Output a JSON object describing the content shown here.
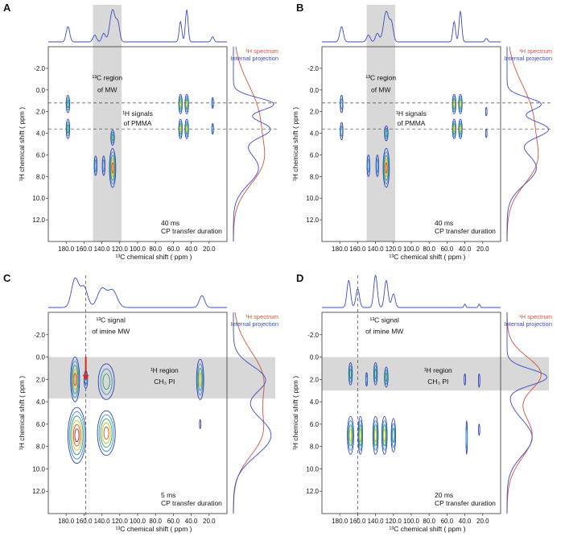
{
  "figure": {
    "legend_red": "¹H spectrum",
    "legend_blue": "Internal projection",
    "x_axis_label": "¹³C chemical shift ( ppm )",
    "y_axis_label": "¹H chemical shift ( ppm )",
    "colors": {
      "projection": "#3b4bc8",
      "h_spectrum": "#d0533e",
      "shade": "#d8d8d8",
      "contour_outer": "#2b3fbf",
      "contour_mid": "#2e9e6a",
      "contour_inner": "#d84a1e",
      "contour_yellow": "#c9c22a"
    }
  },
  "chart_data": [
    {
      "panel": "A",
      "type": "heatmap",
      "xlabel": "¹³C chemical shift ( ppm )",
      "ylabel": "¹H chemical shift ( ppm )",
      "xlim": [
        200,
        0
      ],
      "ylim": [
        -4,
        14
      ],
      "x_ticks": [
        "180.0",
        "160.0",
        "140.0",
        "120.0",
        "100.0",
        "80.0",
        "60.0",
        "40.0",
        "20.0"
      ],
      "y_ticks": [
        "-2.0",
        "0.0",
        "2.0",
        "4.0",
        "6.0",
        "8.0",
        "10.0",
        "12.0"
      ],
      "annotations": {
        "region_label": [
          "¹³C region",
          "of MW"
        ],
        "signal_label": [
          "¹H signals",
          "of PMMA"
        ],
        "duration": [
          "40 ms",
          "CP transfer duration"
        ]
      },
      "shaded_c13_range": [
        150,
        118
      ],
      "dashed_h1_lines": [
        1.2,
        3.6
      ],
      "contours": [
        {
          "c13": 178,
          "h1": 1.3,
          "rx": 2,
          "ry": 0.8,
          "levels": 3
        },
        {
          "c13": 178,
          "h1": 3.6,
          "rx": 2,
          "ry": 0.9,
          "levels": 3
        },
        {
          "c13": 147,
          "h1": 7.0,
          "rx": 1.5,
          "ry": 0.9,
          "levels": 2
        },
        {
          "c13": 138,
          "h1": 7.0,
          "rx": 1.5,
          "ry": 0.9,
          "levels": 2
        },
        {
          "c13": 128,
          "h1": 7.2,
          "rx": 3.5,
          "ry": 1.8,
          "levels": 5
        },
        {
          "c13": 128,
          "h1": 4.4,
          "rx": 2,
          "ry": 0.7,
          "levels": 3
        },
        {
          "c13": 52,
          "h1": 1.3,
          "rx": 2,
          "ry": 0.9,
          "levels": 4
        },
        {
          "c13": 52,
          "h1": 3.6,
          "rx": 2,
          "ry": 0.9,
          "levels": 4
        },
        {
          "c13": 45,
          "h1": 1.3,
          "rx": 2,
          "ry": 0.9,
          "levels": 4
        },
        {
          "c13": 45,
          "h1": 3.6,
          "rx": 2,
          "ry": 0.9,
          "levels": 4
        },
        {
          "c13": 16,
          "h1": 1.2,
          "rx": 1,
          "ry": 0.5,
          "levels": 2
        },
        {
          "c13": 16,
          "h1": 3.6,
          "rx": 1,
          "ry": 0.5,
          "levels": 2
        }
      ]
    },
    {
      "panel": "B",
      "type": "heatmap",
      "xlabel": "¹³C chemical shift ( ppm )",
      "ylabel": "¹H chemical shift ( ppm )",
      "xlim": [
        200,
        0
      ],
      "ylim": [
        -4,
        14
      ],
      "x_ticks": [
        "180.0",
        "160.0",
        "140.0",
        "120.0",
        "100.0",
        "80.0",
        "60.0",
        "40.0",
        "20.0"
      ],
      "y_ticks": [
        "-2.0",
        "0.0",
        "2.0",
        "4.0",
        "6.0",
        "8.0",
        "10.0",
        "12.0"
      ],
      "annotations": {
        "region_label": [
          "¹³C region",
          "of MW"
        ],
        "signal_label": [
          "¹H signals",
          "of PMMA"
        ],
        "duration": [
          "40 ms",
          "CP transfer duration"
        ]
      },
      "shaded_c13_range": [
        150,
        118
      ],
      "dashed_h1_lines": [
        1.2,
        3.6
      ],
      "contours": [
        {
          "c13": 178,
          "h1": 1.3,
          "rx": 1.5,
          "ry": 0.8,
          "levels": 2
        },
        {
          "c13": 178,
          "h1": 3.8,
          "rx": 1.5,
          "ry": 0.8,
          "levels": 2
        },
        {
          "c13": 148,
          "h1": 7.0,
          "rx": 1.5,
          "ry": 1.0,
          "levels": 2
        },
        {
          "c13": 138,
          "h1": 7.0,
          "rx": 1.5,
          "ry": 1.0,
          "levels": 2
        },
        {
          "c13": 128,
          "h1": 7.2,
          "rx": 3.5,
          "ry": 1.8,
          "levels": 5
        },
        {
          "c13": 128,
          "h1": 4.0,
          "rx": 2,
          "ry": 0.7,
          "levels": 3
        },
        {
          "c13": 52,
          "h1": 1.3,
          "rx": 2,
          "ry": 0.9,
          "levels": 4
        },
        {
          "c13": 52,
          "h1": 3.6,
          "rx": 2,
          "ry": 0.9,
          "levels": 4
        },
        {
          "c13": 45,
          "h1": 1.3,
          "rx": 2,
          "ry": 0.9,
          "levels": 4
        },
        {
          "c13": 45,
          "h1": 3.6,
          "rx": 2,
          "ry": 0.9,
          "levels": 4
        },
        {
          "c13": 16,
          "h1": 2.0,
          "rx": 0.8,
          "ry": 0.4,
          "levels": 1
        },
        {
          "c13": 16,
          "h1": 4.0,
          "rx": 0.8,
          "ry": 0.4,
          "levels": 1
        }
      ]
    },
    {
      "panel": "C",
      "type": "heatmap",
      "xlabel": "¹³C chemical shift ( ppm )",
      "ylabel": "¹H chemical shift ( ppm )",
      "xlim": [
        200,
        0
      ],
      "ylim": [
        -4,
        14
      ],
      "x_ticks": [
        "180.0",
        "160.0",
        "140.0",
        "120.0",
        "100.0",
        "80.0",
        "60.0",
        "40.0",
        "20.0"
      ],
      "y_ticks": [
        "-2.0",
        "0.0",
        "2.0",
        "4.0",
        "6.0",
        "8.0",
        "10.0",
        "12.0"
      ],
      "annotations": {
        "region_label": [
          "¹H region",
          "CH₃ PI"
        ],
        "signal_label": [
          "¹³C signal",
          "of imine MW"
        ],
        "duration": [
          "5 ms",
          "CP transfer duration"
        ]
      },
      "shaded_h1_range": [
        0.0,
        3.7
      ],
      "dashed_c13_line": 158,
      "arrow_c13": 158,
      "contours": [
        {
          "c13": 170,
          "h1": 2.0,
          "rx": 5,
          "ry": 2.0,
          "levels": 5
        },
        {
          "c13": 158,
          "h1": 2.0,
          "rx": 2,
          "ry": 0.8,
          "levels": 2
        },
        {
          "c13": 168,
          "h1": 7.0,
          "rx": 10,
          "ry": 2.5,
          "levels": 6
        },
        {
          "c13": 135,
          "h1": 6.8,
          "rx": 10,
          "ry": 2.0,
          "levels": 5
        },
        {
          "c13": 135,
          "h1": 2.2,
          "rx": 9,
          "ry": 1.6,
          "levels": 3
        },
        {
          "c13": 30,
          "h1": 2.0,
          "rx": 4,
          "ry": 1.8,
          "levels": 4
        },
        {
          "c13": 30,
          "h1": 6.0,
          "rx": 0.8,
          "ry": 0.4,
          "levels": 1
        }
      ]
    },
    {
      "panel": "D",
      "type": "heatmap",
      "xlabel": "¹³C chemical shift ( ppm )",
      "ylabel": "¹H chemical shift ( ppm )",
      "xlim": [
        200,
        0
      ],
      "ylim": [
        -4,
        14
      ],
      "x_ticks": [
        "180.0",
        "160.0",
        "140.0",
        "120.0",
        "100.0",
        "80.0",
        "60.0",
        "40.0",
        "20.0"
      ],
      "y_ticks": [
        "-2.0",
        "0.0",
        "2.0",
        "4.0",
        "6.0",
        "8.0",
        "10.0",
        "12.0"
      ],
      "annotations": {
        "region_label": [
          "¹H region",
          "CH₃ PI"
        ],
        "signal_label": [
          "¹³C signal",
          "of imine MW"
        ],
        "duration": [
          "20 ms",
          "CP transfer duration"
        ]
      },
      "shaded_h1_range": [
        0.0,
        3.0
      ],
      "dashed_c13_line": 160,
      "contours": [
        {
          "c13": 168,
          "h1": 1.5,
          "rx": 2,
          "ry": 1.0,
          "levels": 3
        },
        {
          "c13": 150,
          "h1": 2.0,
          "rx": 1,
          "ry": 0.6,
          "levels": 2
        },
        {
          "c13": 140,
          "h1": 1.5,
          "rx": 2,
          "ry": 1.0,
          "levels": 3
        },
        {
          "c13": 128,
          "h1": 1.8,
          "rx": 2,
          "ry": 0.9,
          "levels": 3
        },
        {
          "c13": 40,
          "h1": 2.0,
          "rx": 0.8,
          "ry": 0.5,
          "levels": 1
        },
        {
          "c13": 24,
          "h1": 2.1,
          "rx": 0.8,
          "ry": 0.6,
          "levels": 1
        },
        {
          "c13": 168,
          "h1": 7.0,
          "rx": 3.5,
          "ry": 1.7,
          "levels": 4
        },
        {
          "c13": 157,
          "h1": 7.0,
          "rx": 2.5,
          "ry": 1.7,
          "levels": 4
        },
        {
          "c13": 140,
          "h1": 7.0,
          "rx": 3,
          "ry": 1.7,
          "levels": 4
        },
        {
          "c13": 130,
          "h1": 7.0,
          "rx": 3,
          "ry": 1.7,
          "levels": 4
        },
        {
          "c13": 120,
          "h1": 7.0,
          "rx": 2.5,
          "ry": 1.5,
          "levels": 3
        },
        {
          "c13": 38,
          "h1": 7.2,
          "rx": 0.8,
          "ry": 1.5,
          "levels": 2
        },
        {
          "c13": 24,
          "h1": 6.5,
          "rx": 0.5,
          "ry": 0.5,
          "levels": 1
        }
      ]
    }
  ]
}
